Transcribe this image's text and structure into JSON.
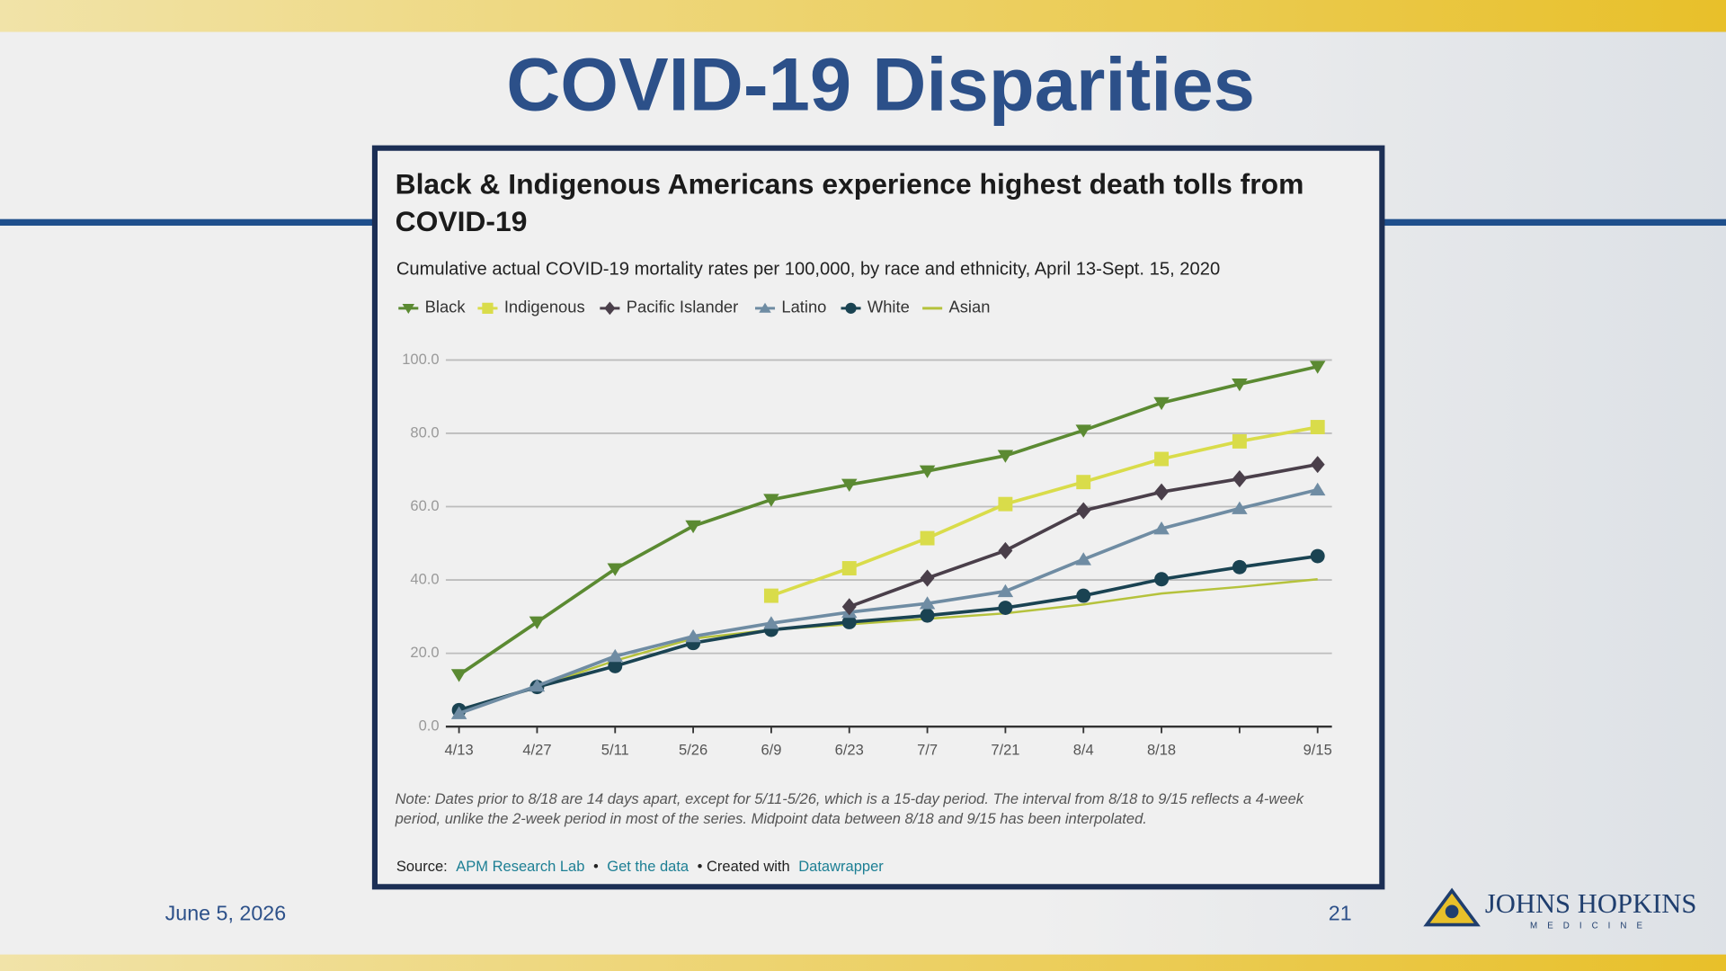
{
  "slide": {
    "title": "COVID-19 Disparities",
    "date": "June 5, 2026",
    "page_number": "21",
    "logo": {
      "name": "JOHNS HOPKINS",
      "sub": "MEDICINE"
    }
  },
  "chart_data": {
    "type": "line",
    "title": "Black & Indigenous Americans experience highest death tolls from COVID-19",
    "subtitle": "Cumulative actual COVID-19 mortality rates per 100,000, by race and ethnicity, April 13-Sept. 15, 2020",
    "categories": [
      "4/13",
      "4/27",
      "5/11",
      "5/26",
      "6/9",
      "6/23",
      "7/7",
      "7/21",
      "8/4",
      "8/18",
      null,
      "9/15"
    ],
    "series": [
      {
        "name": "Black",
        "color": "#5b8a32",
        "marker": "triangle-down",
        "values": [
          14.1,
          28.5,
          43,
          54.7,
          61.9,
          66,
          69.7,
          73.9,
          80.8,
          88.3,
          93.4,
          98.2
        ]
      },
      {
        "name": "Indigenous",
        "color": "#d9dc4a",
        "marker": "square",
        "values": [
          null,
          null,
          null,
          null,
          35.7,
          43.2,
          51.4,
          60.7,
          66.7,
          73,
          77.8,
          81.7
        ]
      },
      {
        "name": "Pacific Islander",
        "color": "#4a3f4a",
        "marker": "diamond",
        "values": [
          null,
          null,
          null,
          null,
          null,
          32.7,
          40.5,
          48,
          58.9,
          64,
          67.6,
          71.5
        ]
      },
      {
        "name": "Latino",
        "color": "#6f8ca3",
        "marker": "triangle-up",
        "values": [
          3.6,
          11.1,
          19.2,
          24.6,
          28.2,
          31.2,
          33.6,
          36.9,
          45.6,
          54,
          59.5,
          64.6
        ]
      },
      {
        "name": "White",
        "color": "#1a4352",
        "marker": "circle",
        "values": [
          4.5,
          10.8,
          16.5,
          22.8,
          26.4,
          28.5,
          30.3,
          32.4,
          35.7,
          40.2,
          43.5,
          46.5
        ]
      },
      {
        "name": "Asian",
        "color": "#b5c23c",
        "marker": "none",
        "values": [
          4.2,
          10.8,
          18,
          24,
          26.4,
          27.9,
          29.4,
          30.9,
          33.3,
          36.3,
          38.1,
          40.2
        ]
      }
    ],
    "ylim": [
      0,
      100
    ],
    "yticks": [
      {
        "value": 0,
        "label": "0.0"
      },
      {
        "value": 20,
        "label": "20.0"
      },
      {
        "value": 40,
        "label": "40.0"
      },
      {
        "value": 60,
        "label": "60.0"
      },
      {
        "value": 80,
        "label": "80.0"
      },
      {
        "value": 100,
        "label": "100.0"
      }
    ],
    "grid": true,
    "legend": "top-left",
    "note": "Note: Dates prior to 8/18 are 14 days apart, except for 5/11-5/26, which is a 15-day period. The interval from 8/18 to 9/15 reflects a 4-week period, unlike the 2-week period in most of the series. Midpoint data between 8/18 and 9/15 has been interpolated.",
    "source": {
      "label": "Source:",
      "org": "APM Research Lab",
      "sep": "•",
      "data_link": "Get the data",
      "created": "• Created with",
      "tool": "Datawrapper"
    }
  }
}
